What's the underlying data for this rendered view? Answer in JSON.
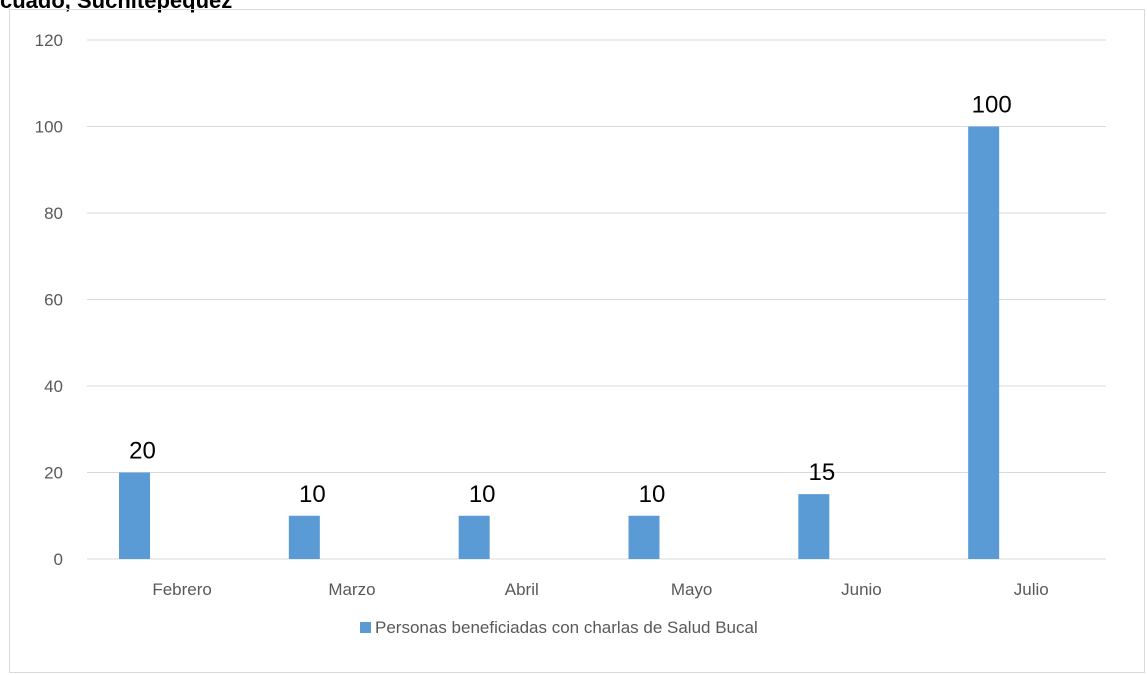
{
  "page": {
    "title_fragment": "cuado, Suchitepéquez"
  },
  "chart_data": {
    "type": "bar",
    "categories": [
      "Febrero",
      "Marzo",
      "Abril",
      "Mayo",
      "Junio",
      "Julio"
    ],
    "series": [
      {
        "name": "Personas beneficiadas con charlas de Salud Bucal",
        "values": [
          20,
          10,
          10,
          10,
          15,
          100
        ],
        "color": "#5b9bd5"
      }
    ],
    "ylim": [
      0,
      120
    ],
    "yticks": [
      0,
      20,
      40,
      60,
      80,
      100,
      120
    ],
    "grid": true,
    "legend": "bottom",
    "data_labels": [
      "20",
      "10",
      "10",
      "10",
      "15",
      "100"
    ]
  }
}
